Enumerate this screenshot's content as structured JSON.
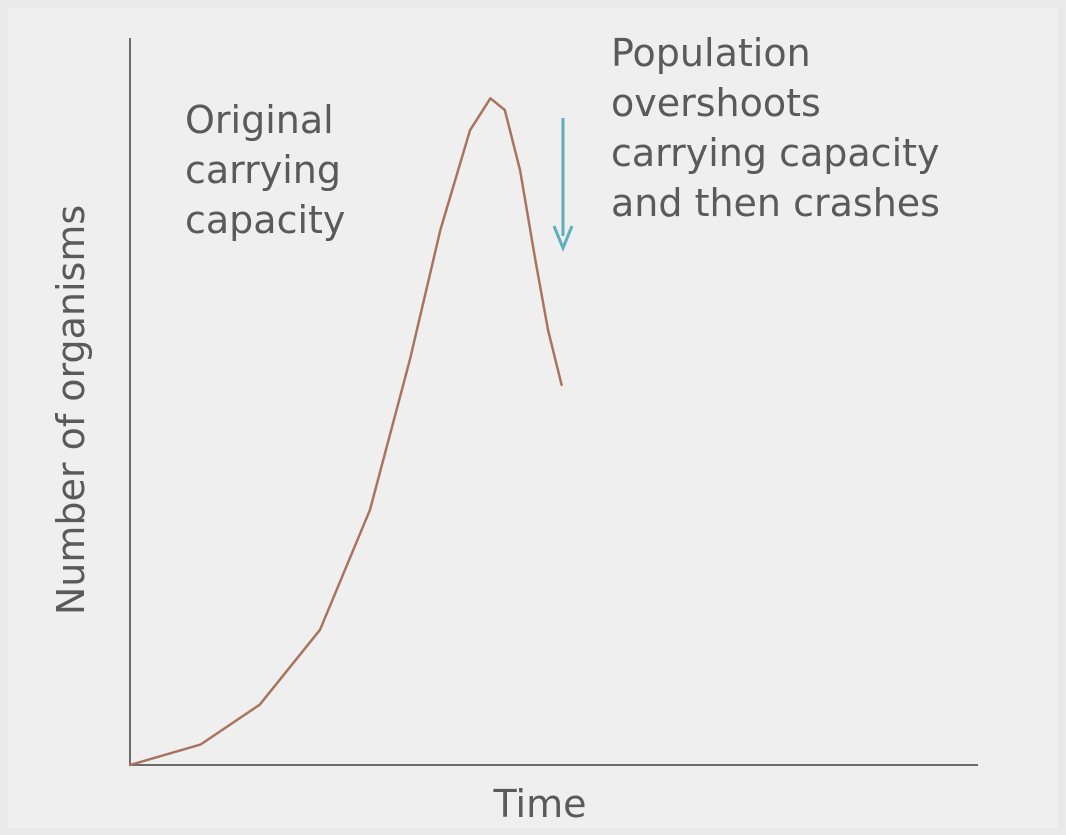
{
  "chart_data": {
    "type": "line",
    "annotations": [
      {
        "lines": [
          "Original",
          "carrying",
          "capacity"
        ]
      },
      {
        "lines": [
          "Population",
          "overshoots",
          "carrying capacity",
          "and then crashes"
        ]
      }
    ],
    "xlabel": "Time",
    "ylabel": "Number of organisms",
    "x": [
      0,
      8.3,
      15.3,
      22.4,
      28.3,
      33.0,
      36.6,
      40.1,
      42.5,
      44.2,
      46.0,
      47.8,
      49.3,
      50.9
    ],
    "series": [
      {
        "color": "#a87460",
        "values": [
          0,
          2.8,
          8.3,
          18.6,
          35.1,
          55.7,
          73.6,
          87.3,
          91.7,
          90.1,
          81.8,
          69.5,
          59.8,
          52.3
        ]
      }
    ],
    "xlim": [
      0,
      100
    ],
    "ylim": [
      0,
      100
    ]
  }
}
